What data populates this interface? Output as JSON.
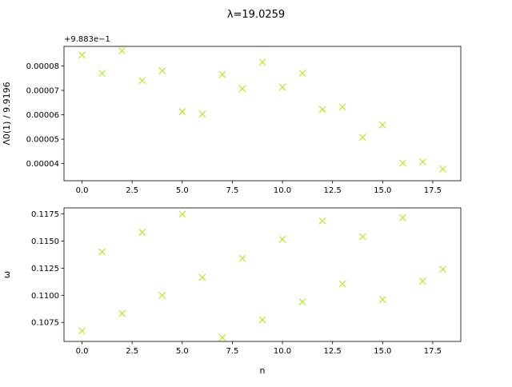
{
  "figure": {
    "title": "λ=19.0259"
  },
  "chart_data": [
    {
      "type": "scatter",
      "ylabel": "Λ0(1) / 9.9196",
      "xlabel": "",
      "offset_label": "+9.883e−1",
      "marker": "x",
      "color": "#aaee11",
      "xlim": [
        -0.9,
        18.9
      ],
      "ylim": [
        3.3e-05,
        8.8e-05
      ],
      "xticks": [
        0,
        2.5,
        5,
        7.5,
        10,
        12.5,
        15,
        17.5
      ],
      "xtick_labels": [
        "0.0",
        "2.5",
        "5.0",
        "7.5",
        "10.0",
        "12.5",
        "15.0",
        "17.5"
      ],
      "yticks": [
        4e-05,
        5e-05,
        6e-05,
        7e-05,
        8e-05
      ],
      "ytick_labels": [
        "0.00004",
        "0.00005",
        "0.00006",
        "0.00007",
        "0.00008"
      ],
      "x": [
        0,
        1,
        2,
        3,
        4,
        5,
        6,
        7,
        8,
        9,
        10,
        11,
        12,
        13,
        14,
        15,
        16,
        17,
        18
      ],
      "y": [
        8.45e-05,
        7.7e-05,
        8.62e-05,
        7.4e-05,
        7.8e-05,
        6.13e-05,
        6.03e-05,
        7.65e-05,
        7.07e-05,
        8.15e-05,
        7.13e-05,
        7.7e-05,
        6.22e-05,
        6.32e-05,
        5.08e-05,
        5.58e-05,
        4.03e-05,
        4.07e-05,
        3.78e-05
      ]
    },
    {
      "type": "scatter",
      "ylabel": "ω",
      "xlabel": "n",
      "marker": "x",
      "color": "#aaee11",
      "xlim": [
        -0.9,
        18.9
      ],
      "ylim": [
        0.10575,
        0.11805
      ],
      "xticks": [
        0,
        2.5,
        5,
        7.5,
        10,
        12.5,
        15,
        17.5
      ],
      "xtick_labels": [
        "0.0",
        "2.5",
        "5.0",
        "7.5",
        "10.0",
        "12.5",
        "15.0",
        "17.5"
      ],
      "yticks": [
        0.1075,
        0.11,
        0.1125,
        0.115,
        0.1175
      ],
      "ytick_labels": [
        "0.1075",
        "0.1100",
        "0.1125",
        "0.1150",
        "0.1175"
      ],
      "x": [
        0,
        1,
        2,
        3,
        4,
        5,
        6,
        7,
        8,
        9,
        10,
        11,
        12,
        13,
        14,
        15,
        16,
        17,
        18
      ],
      "y": [
        0.10672,
        0.114,
        0.10832,
        0.1158,
        0.11,
        0.11748,
        0.11165,
        0.1061,
        0.1134,
        0.10775,
        0.11515,
        0.1094,
        0.11685,
        0.11105,
        0.1154,
        0.1096,
        0.11715,
        0.1113,
        0.1124
      ]
    }
  ]
}
